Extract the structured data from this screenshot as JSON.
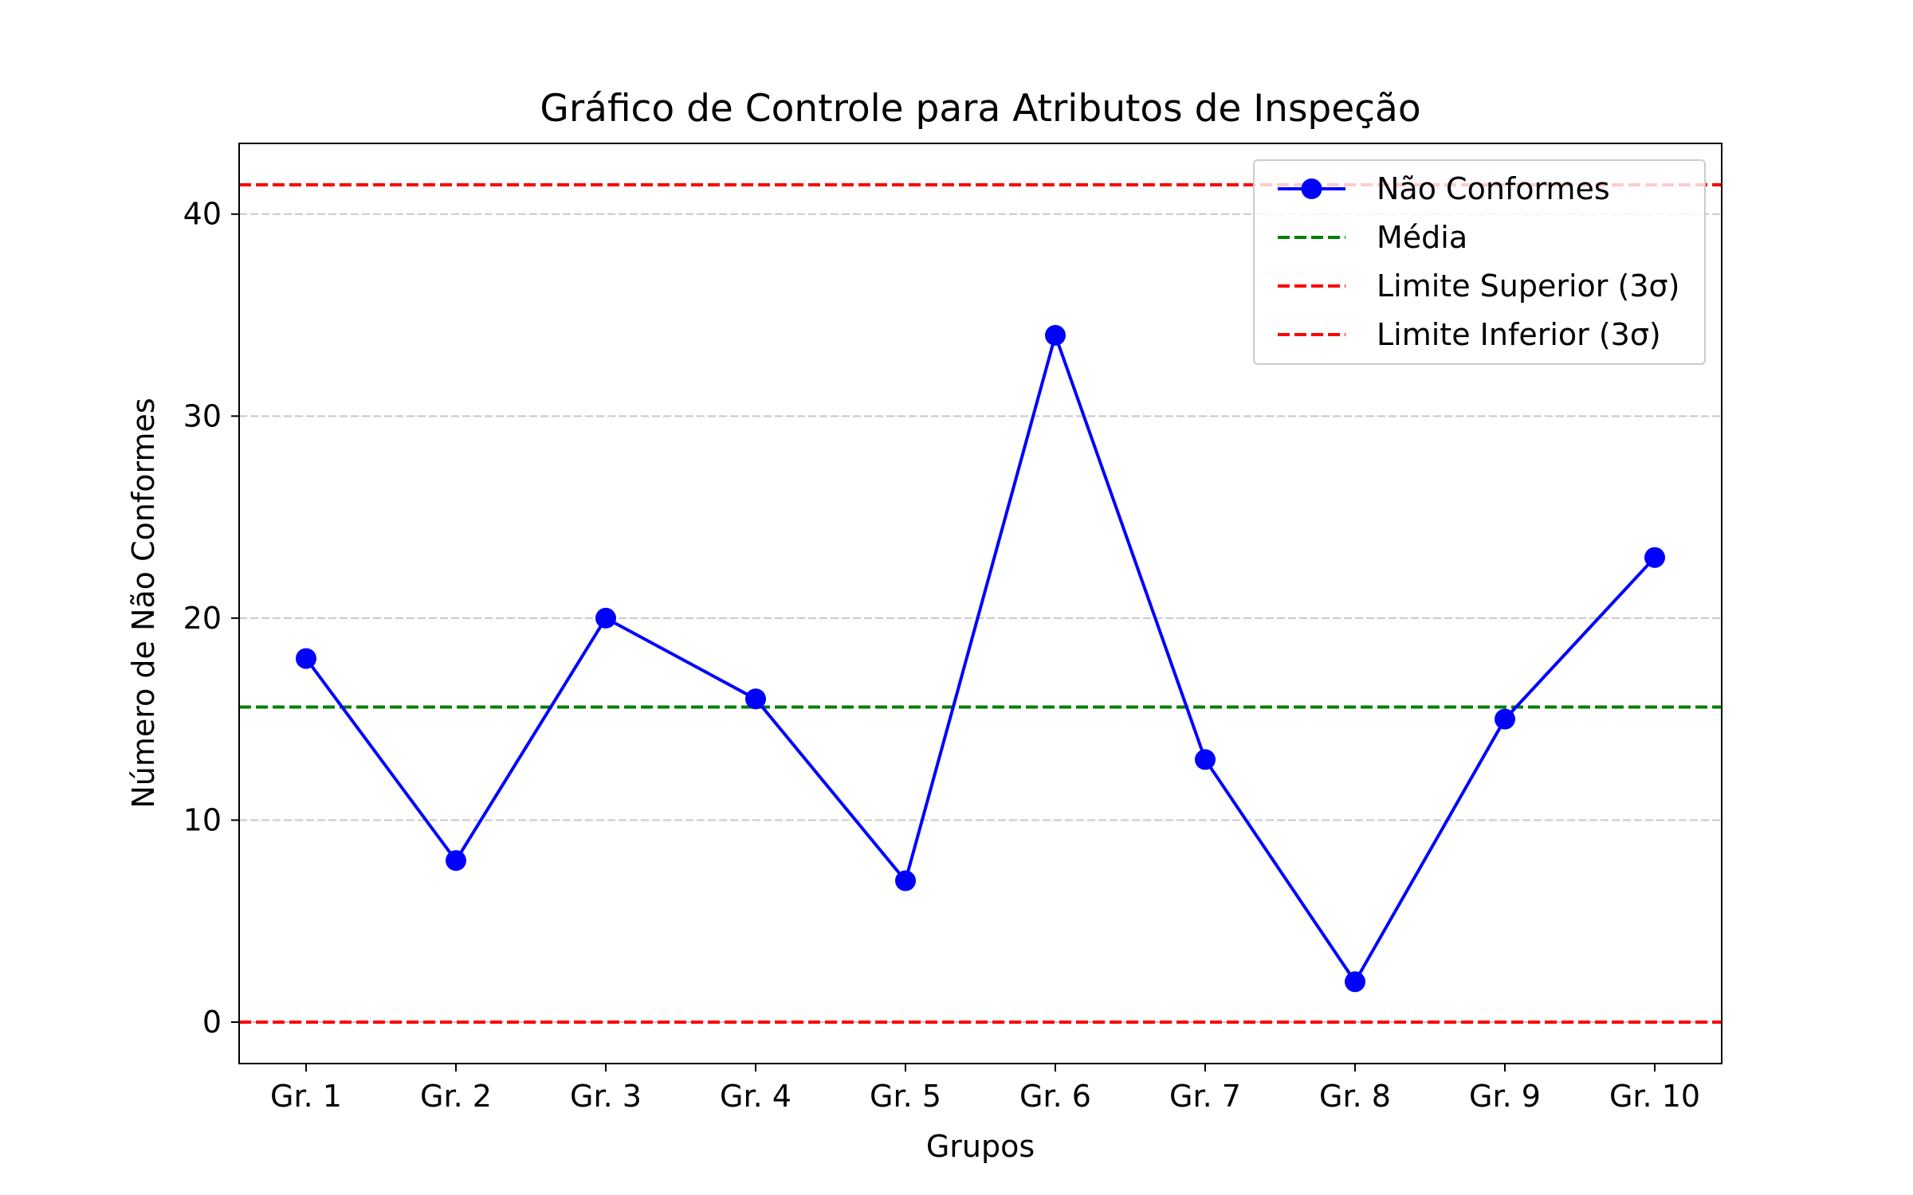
{
  "chart_data": {
    "type": "line",
    "title": "Gráfico de Controle para Atributos de Inspeção",
    "xlabel": "Grupos",
    "ylabel": "Número de Não Conformes",
    "categories": [
      "Gr. 1",
      "Gr. 2",
      "Gr. 3",
      "Gr. 4",
      "Gr. 5",
      "Gr. 6",
      "Gr. 7",
      "Gr. 8",
      "Gr. 9",
      "Gr. 10"
    ],
    "series": [
      {
        "name": "Não Conformes",
        "values": [
          18,
          8,
          20,
          16,
          7,
          34,
          13,
          2,
          15,
          23
        ],
        "color": "#0000ff"
      }
    ],
    "reference_lines": [
      {
        "name": "Média",
        "value": 15.6,
        "color": "#008000"
      },
      {
        "name": "Limite Superior (3σ)",
        "value": 41.45,
        "color": "#ff0000"
      },
      {
        "name": "Limite Inferior (3σ)",
        "value": 0,
        "color": "#ff0000"
      }
    ],
    "ylim": [
      -2.05,
      43.5
    ],
    "yticks": [
      0,
      10,
      20,
      30,
      40
    ],
    "grid": "horizontal-dashed",
    "legend": "top-right"
  }
}
